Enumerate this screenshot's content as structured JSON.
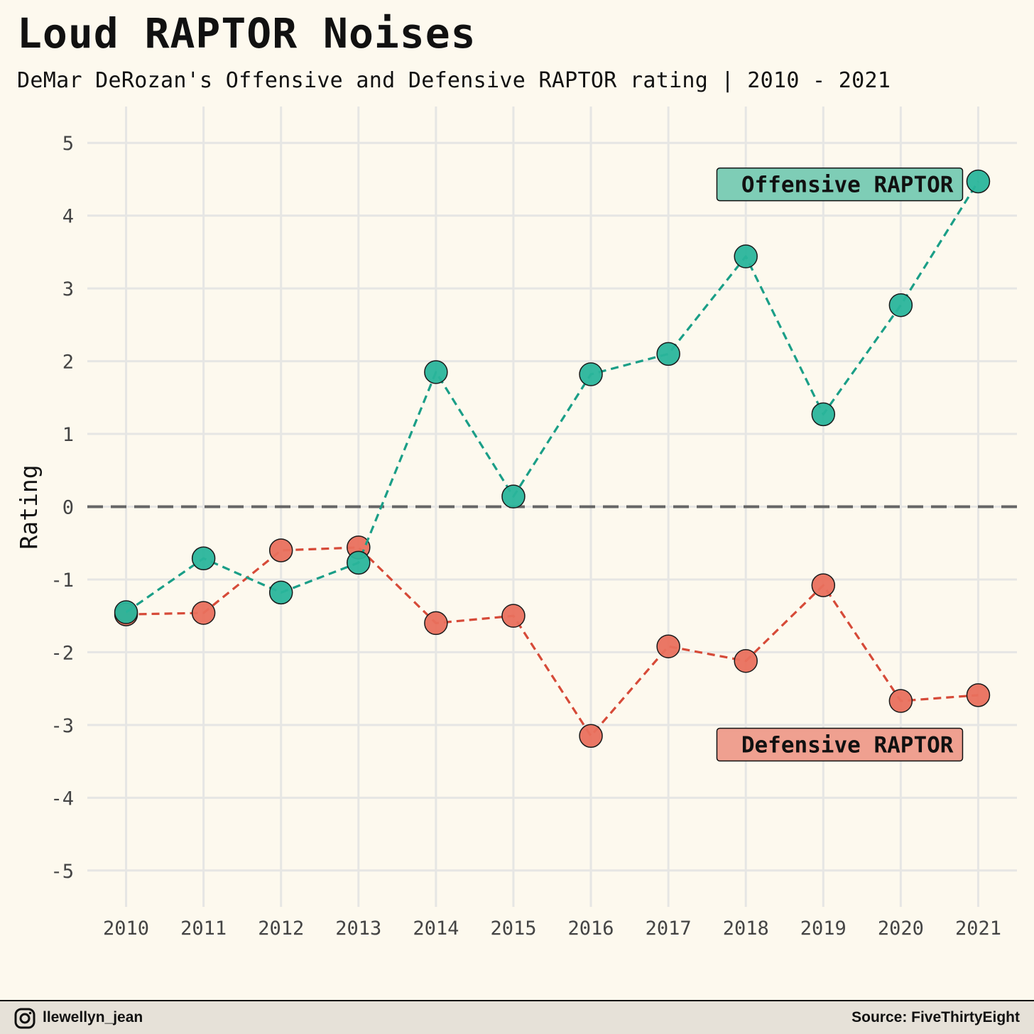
{
  "title": "Loud RAPTOR Noises",
  "subtitle": "DeMar DeRozan's Offensive and Defensive RAPTOR rating | 2010 - 2021",
  "footer": {
    "handle": "llewellyn_jean",
    "source": "Source: FiveThirtyEight"
  },
  "icons": {
    "social": "instagram-icon"
  },
  "colors": {
    "background": "#fdf9ee",
    "offense": "#1a9e87",
    "offense_point": "#2ab59b",
    "offense_label_bg": "#7ecdb6",
    "defense": "#d64a38",
    "defense_point": "#e9705d",
    "defense_label_bg": "#efa090",
    "grid": "#e6e6e4",
    "zero_line": "#666666"
  },
  "chart_data": {
    "type": "line",
    "title": "Loud RAPTOR Noises",
    "subtitle": "DeMar DeRozan's Offensive and Defensive RAPTOR rating | 2010 - 2021",
    "xlabel": "",
    "ylabel": "Rating",
    "x": [
      2010,
      2011,
      2012,
      2013,
      2014,
      2015,
      2016,
      2017,
      2018,
      2019,
      2020,
      2021
    ],
    "xlim": [
      2009.5,
      2021.5
    ],
    "ylim": [
      -5.5,
      5.5
    ],
    "yticks": [
      -5,
      -4,
      -3,
      -2,
      -1,
      0,
      1,
      2,
      3,
      4,
      5
    ],
    "grid": true,
    "reference_line": {
      "y": 0,
      "style": "dashed"
    },
    "legend": "none",
    "series": [
      {
        "name": "Offensive RAPTOR",
        "values": [
          -1.45,
          -0.71,
          -1.18,
          -0.77,
          1.85,
          0.14,
          1.82,
          2.1,
          3.44,
          1.27,
          2.77,
          4.47
        ],
        "line_style": "dashed"
      },
      {
        "name": "Defensive RAPTOR",
        "values": [
          -1.48,
          -1.46,
          -0.6,
          -0.56,
          -1.6,
          -1.5,
          -3.15,
          -1.92,
          -2.12,
          -1.08,
          -2.67,
          -2.59
        ],
        "line_style": "dashed"
      }
    ],
    "annotations": [
      "Offensive RAPTOR",
      "Defensive RAPTOR"
    ]
  }
}
